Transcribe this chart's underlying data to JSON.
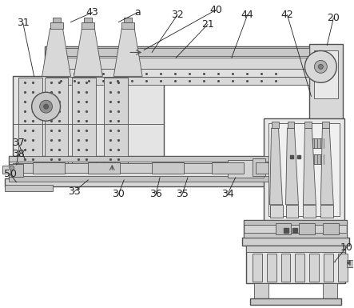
{
  "bg_color": "#ffffff",
  "lc": "#505050",
  "lc2": "#333333",
  "fc_light": "#e8e8e8",
  "fc_mid": "#d0d0d0",
  "fc_dark": "#b8b8b8",
  "figsize": [
    4.43,
    3.85
  ],
  "dpi": 100
}
